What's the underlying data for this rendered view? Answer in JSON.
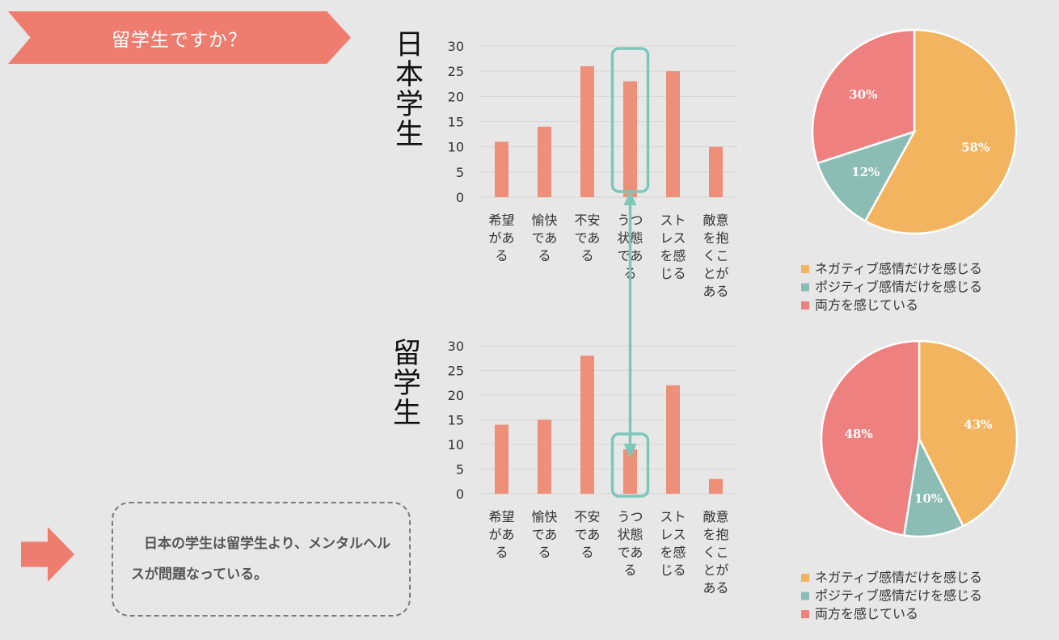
{
  "banner": {
    "label": "留学生ですか？"
  },
  "titles": {
    "japanese": "日本学生",
    "international": "留学生"
  },
  "conclusion": {
    "text": "日本の学生は留学生より、メンタルヘルスが問題なっている。"
  },
  "colors": {
    "bar": "#ee8f7a",
    "highlight": "#7cc7b8",
    "accent": "#ee7d70",
    "negative": "#f2b45f",
    "positive": "#8bbdb4",
    "both": "#ef8080"
  },
  "chart_data": [
    {
      "type": "bar",
      "categories": [
        "希望がある",
        "愉快である",
        "不安である",
        "うつ状態である",
        "ストレスを感じる",
        "敵意を抱くことがある"
      ],
      "values": [
        11,
        14,
        26,
        23,
        25,
        10
      ],
      "title": "日本学生",
      "xlabel": "",
      "ylabel": "",
      "ylim": [
        0,
        30
      ],
      "yticks": [
        0,
        5,
        10,
        15,
        20,
        25,
        30
      ],
      "grid": true,
      "highlighted_category": "うつ状態である"
    },
    {
      "type": "bar",
      "categories": [
        "希望がある",
        "愉快である",
        "不安である",
        "うつ状態である",
        "ストレスを感じる",
        "敵意を抱くことがある"
      ],
      "values": [
        14,
        15,
        28,
        9,
        22,
        3
      ],
      "title": "留学生",
      "xlabel": "",
      "ylabel": "",
      "ylim": [
        0,
        30
      ],
      "yticks": [
        0,
        5,
        10,
        15,
        20,
        25,
        30
      ],
      "grid": true,
      "highlighted_category": "うつ状態である"
    },
    {
      "type": "pie",
      "title": "日本学生",
      "labels": [
        "ネガティブ感情だけを感じる",
        "ポジティブ感情だけを感じる",
        "両方を感じている"
      ],
      "values": [
        58,
        12,
        30
      ],
      "value_labels": [
        "58%",
        "12%",
        "30%"
      ],
      "legend": "bottom"
    },
    {
      "type": "pie",
      "title": "留学生",
      "labels": [
        "ネガティブ感情だけを感じる",
        "ポジティブ感情だけを感じる",
        "両方を感じている"
      ],
      "values": [
        43,
        10,
        48
      ],
      "value_labels": [
        "43%",
        "10%",
        "48%"
      ],
      "legend": "bottom"
    }
  ]
}
